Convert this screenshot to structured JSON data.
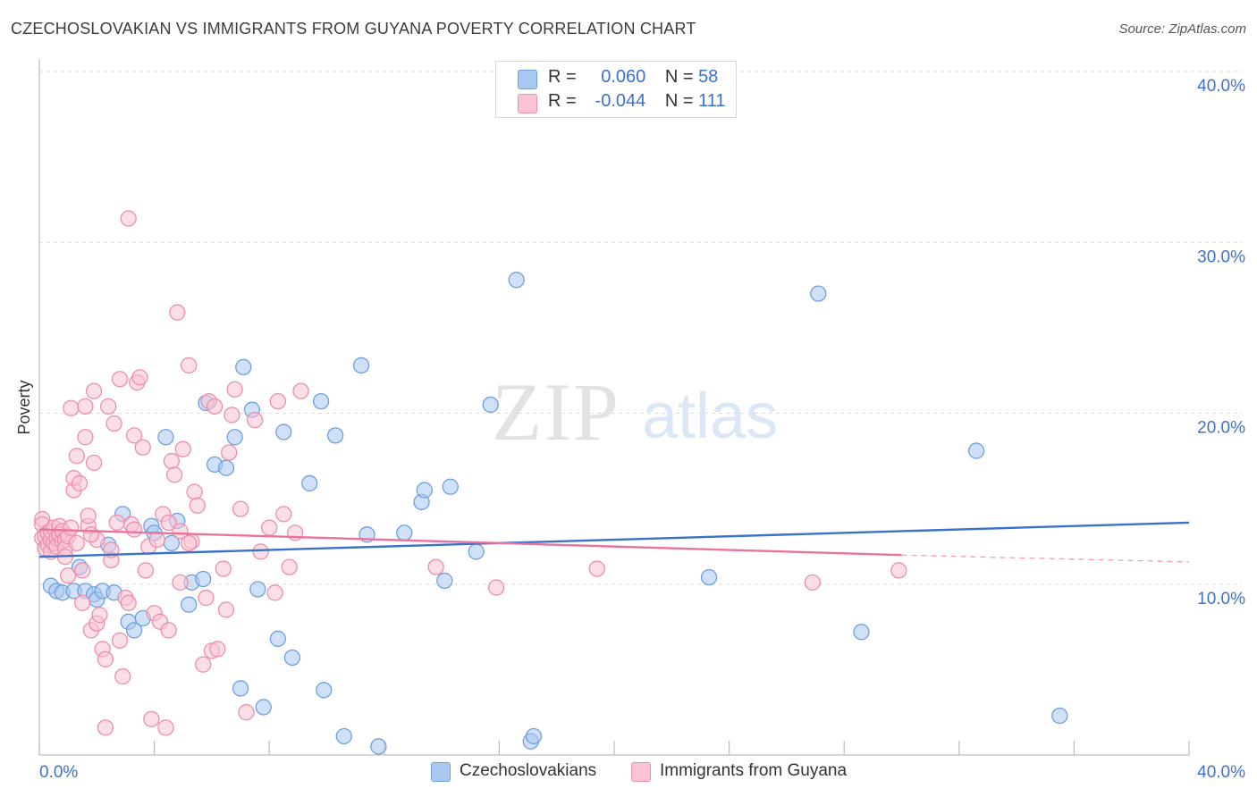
{
  "title": "CZECHOSLOVAKIAN VS IMMIGRANTS FROM GUYANA POVERTY CORRELATION CHART",
  "source": "Source: ZipAtlas.com",
  "watermark": {
    "zip": "ZIP",
    "atlas": "atlas"
  },
  "legend_top": {
    "rows": [
      {
        "r_label": "R =",
        "r_value": "0.060",
        "n_label": "N =",
        "n_value": "58",
        "color": "#a9c8f0",
        "border": "#6f9fe0"
      },
      {
        "r_label": "R =",
        "r_value": "-0.044",
        "n_label": "N =",
        "n_value": "111",
        "color": "#f9c3d3",
        "border": "#eb8fab"
      }
    ]
  },
  "legend_bottom": [
    {
      "label": "Czechoslovakians",
      "color": "#a9c8f0",
      "border": "#6f9fe0"
    },
    {
      "label": "Immigrants from Guyana",
      "color": "#f9c3d3",
      "border": "#eb8fab"
    }
  ],
  "chart_data": {
    "type": "scatter",
    "title": "CZECHOSLOVAKIAN VS IMMIGRANTS FROM GUYANA POVERTY CORRELATION CHART",
    "xlabel": "",
    "ylabel": "Poverty",
    "xlim": [
      0,
      40
    ],
    "ylim": [
      0,
      40
    ],
    "x_tick_labels": [
      "0.0%",
      "40.0%"
    ],
    "y_ticks": [
      10,
      20,
      30,
      40
    ],
    "y_tick_labels": [
      "10.0%",
      "20.0%",
      "30.0%",
      "40.0%"
    ],
    "grid": true,
    "legend_position": "top-center",
    "series": [
      {
        "name": "Czechoslovakians",
        "color": "#6f9fe0",
        "fill": "#a9c8f0",
        "trend": {
          "x": [
            0,
            40
          ],
          "y": [
            11.6,
            13.6
          ],
          "color": "#3b72c9"
        },
        "points": [
          [
            0.4,
            9.9
          ],
          [
            0.6,
            9.6
          ],
          [
            0.8,
            9.5
          ],
          [
            1.2,
            9.6
          ],
          [
            1.4,
            11.0
          ],
          [
            1.6,
            9.6
          ],
          [
            1.9,
            9.4
          ],
          [
            2.0,
            9.1
          ],
          [
            2.2,
            9.6
          ],
          [
            2.4,
            12.3
          ],
          [
            2.6,
            9.5
          ],
          [
            2.9,
            14.1
          ],
          [
            3.1,
            7.8
          ],
          [
            3.3,
            7.3
          ],
          [
            3.6,
            8.0
          ],
          [
            3.9,
            13.4
          ],
          [
            4.0,
            13.0
          ],
          [
            4.4,
            18.6
          ],
          [
            4.6,
            12.4
          ],
          [
            4.8,
            13.7
          ],
          [
            5.2,
            8.8
          ],
          [
            5.3,
            10.1
          ],
          [
            5.7,
            10.3
          ],
          [
            5.8,
            20.6
          ],
          [
            6.1,
            17.0
          ],
          [
            6.5,
            16.8
          ],
          [
            6.8,
            18.6
          ],
          [
            7.0,
            3.9
          ],
          [
            7.1,
            22.7
          ],
          [
            7.4,
            20.2
          ],
          [
            7.6,
            9.7
          ],
          [
            7.8,
            2.8
          ],
          [
            8.3,
            6.8
          ],
          [
            8.5,
            18.9
          ],
          [
            8.8,
            5.7
          ],
          [
            9.4,
            15.9
          ],
          [
            9.8,
            20.7
          ],
          [
            9.9,
            3.8
          ],
          [
            10.3,
            18.7
          ],
          [
            10.6,
            1.1
          ],
          [
            11.2,
            22.8
          ],
          [
            11.4,
            12.9
          ],
          [
            11.8,
            0.5
          ],
          [
            12.7,
            13.0
          ],
          [
            13.3,
            14.8
          ],
          [
            13.4,
            15.5
          ],
          [
            14.1,
            10.2
          ],
          [
            14.3,
            15.7
          ],
          [
            15.2,
            11.9
          ],
          [
            15.7,
            20.5
          ],
          [
            16.6,
            27.8
          ],
          [
            17.1,
            0.8
          ],
          [
            17.2,
            1.1
          ],
          [
            23.3,
            10.4
          ],
          [
            27.1,
            27.0
          ],
          [
            28.6,
            7.2
          ],
          [
            32.6,
            17.8
          ],
          [
            35.5,
            2.3
          ]
        ]
      },
      {
        "name": "Immigrants from Guyana",
        "color": "#eb8fab",
        "fill": "#f9c3d3",
        "trend": {
          "x": [
            0,
            30
          ],
          "y": [
            13.2,
            11.7
          ],
          "color": "#e8739b",
          "dashed_extension_to": [
            40,
            11.3
          ]
        },
        "points": [
          [
            0.1,
            13.8
          ],
          [
            0.1,
            12.7
          ],
          [
            0.1,
            13.5
          ],
          [
            0.2,
            12.1
          ],
          [
            0.2,
            12.8
          ],
          [
            0.3,
            12.3
          ],
          [
            0.3,
            13.0
          ],
          [
            0.4,
            12.6
          ],
          [
            0.4,
            13.1
          ],
          [
            0.4,
            11.9
          ],
          [
            0.5,
            12.4
          ],
          [
            0.5,
            13.3
          ],
          [
            0.6,
            12.7
          ],
          [
            0.6,
            12.2
          ],
          [
            0.7,
            13.4
          ],
          [
            0.7,
            12.9
          ],
          [
            0.8,
            12.5
          ],
          [
            0.8,
            13.1
          ],
          [
            0.9,
            12.6
          ],
          [
            0.9,
            12.1
          ],
          [
            1.0,
            12.8
          ],
          [
            1.0,
            10.5
          ],
          [
            1.1,
            13.3
          ],
          [
            1.1,
            20.3
          ],
          [
            1.2,
            15.5
          ],
          [
            1.2,
            16.2
          ],
          [
            1.3,
            17.5
          ],
          [
            1.3,
            12.4
          ],
          [
            1.4,
            15.9
          ],
          [
            1.5,
            10.8
          ],
          [
            1.5,
            8.9
          ],
          [
            1.6,
            20.4
          ],
          [
            1.6,
            18.6
          ],
          [
            1.7,
            13.4
          ],
          [
            1.7,
            14.0
          ],
          [
            1.8,
            7.3
          ],
          [
            1.9,
            21.3
          ],
          [
            1.9,
            17.1
          ],
          [
            2.0,
            12.6
          ],
          [
            2.0,
            7.7
          ],
          [
            2.1,
            8.2
          ],
          [
            2.2,
            6.2
          ],
          [
            2.3,
            5.6
          ],
          [
            2.3,
            1.6
          ],
          [
            2.4,
            20.4
          ],
          [
            2.5,
            11.4
          ],
          [
            2.6,
            19.4
          ],
          [
            2.7,
            13.6
          ],
          [
            2.8,
            22.0
          ],
          [
            2.8,
            6.7
          ],
          [
            2.9,
            4.6
          ],
          [
            3.0,
            9.2
          ],
          [
            3.1,
            8.9
          ],
          [
            3.1,
            31.4
          ],
          [
            3.2,
            13.5
          ],
          [
            3.3,
            18.7
          ],
          [
            3.4,
            21.8
          ],
          [
            3.5,
            22.1
          ],
          [
            3.6,
            18.0
          ],
          [
            3.7,
            10.8
          ],
          [
            3.8,
            12.2
          ],
          [
            3.9,
            2.1
          ],
          [
            4.0,
            8.3
          ],
          [
            4.1,
            12.6
          ],
          [
            4.2,
            7.8
          ],
          [
            4.3,
            14.1
          ],
          [
            4.4,
            1.6
          ],
          [
            4.5,
            13.6
          ],
          [
            4.5,
            7.3
          ],
          [
            4.6,
            17.2
          ],
          [
            4.7,
            16.4
          ],
          [
            4.8,
            25.9
          ],
          [
            4.9,
            10.1
          ],
          [
            5.0,
            17.9
          ],
          [
            5.2,
            22.8
          ],
          [
            5.3,
            12.5
          ],
          [
            5.4,
            15.4
          ],
          [
            5.5,
            14.6
          ],
          [
            5.7,
            5.3
          ],
          [
            5.8,
            9.2
          ],
          [
            5.9,
            20.7
          ],
          [
            6.0,
            6.1
          ],
          [
            6.1,
            20.4
          ],
          [
            6.2,
            6.2
          ],
          [
            6.4,
            10.9
          ],
          [
            6.5,
            8.5
          ],
          [
            6.6,
            17.7
          ],
          [
            6.7,
            19.9
          ],
          [
            6.8,
            21.4
          ],
          [
            7.0,
            14.4
          ],
          [
            7.2,
            2.5
          ],
          [
            7.5,
            19.6
          ],
          [
            7.7,
            11.9
          ],
          [
            8.0,
            13.3
          ],
          [
            8.2,
            9.5
          ],
          [
            8.3,
            20.7
          ],
          [
            8.5,
            14.1
          ],
          [
            8.7,
            11.0
          ],
          [
            8.9,
            13.0
          ],
          [
            9.1,
            21.3
          ],
          [
            13.8,
            11.0
          ],
          [
            15.9,
            9.8
          ],
          [
            19.4,
            10.9
          ],
          [
            26.9,
            10.1
          ],
          [
            29.9,
            10.8
          ],
          [
            1.8,
            12.9
          ],
          [
            2.5,
            12.0
          ],
          [
            3.3,
            13.2
          ],
          [
            0.9,
            11.6
          ],
          [
            4.9,
            13.1
          ],
          [
            5.2,
            12.4
          ]
        ]
      }
    ]
  }
}
